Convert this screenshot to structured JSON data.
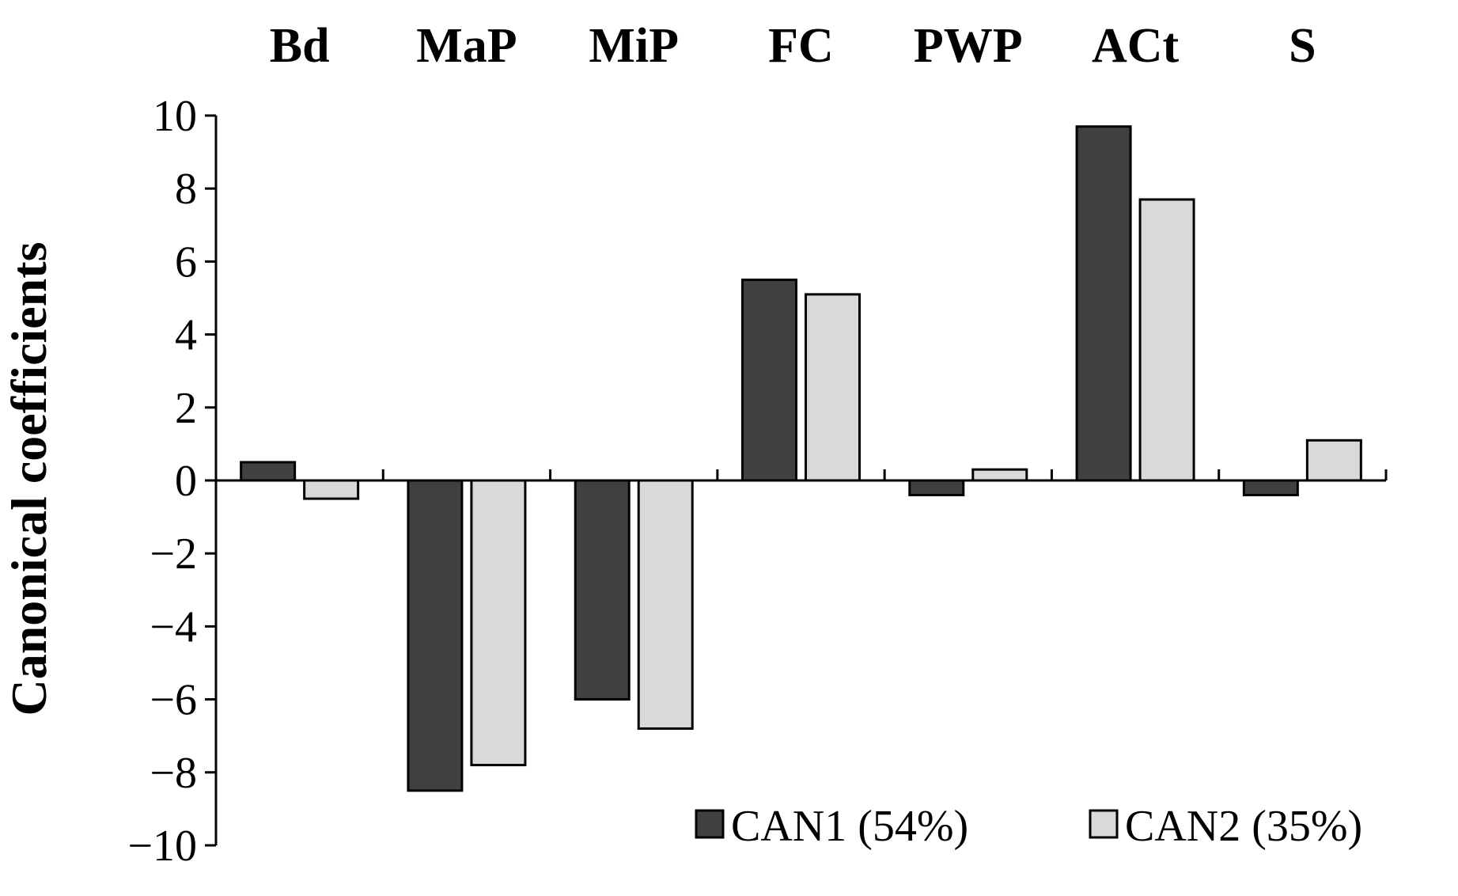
{
  "chart_data": {
    "type": "bar",
    "title": "",
    "xlabel": "",
    "ylabel": "Canonical coefficients",
    "categories": [
      "Bd",
      "MaP",
      "MiP",
      "FC",
      "PWP",
      "ACt",
      "S"
    ],
    "series": [
      {
        "name": "CAN1 (54%)",
        "color": "#404040",
        "values": [
          0.5,
          -8.5,
          -6.0,
          5.5,
          -0.4,
          9.7,
          -0.4
        ]
      },
      {
        "name": "CAN2 (35%)",
        "color": "#d9d9d9",
        "values": [
          -0.5,
          -7.8,
          -6.8,
          5.1,
          0.3,
          7.7,
          1.1
        ]
      }
    ],
    "ylim": [
      -10,
      10
    ],
    "yticks": [
      10,
      8,
      6,
      4,
      2,
      0,
      -2,
      -4,
      -6,
      -8,
      -10
    ],
    "ytick_labels": [
      "10",
      "8",
      "6",
      "4",
      "2",
      "0",
      "−2",
      "−4",
      "−6",
      "−8",
      "−10"
    ],
    "category_labels_position": "top",
    "grid": false,
    "legend_position": "bottom-right"
  }
}
